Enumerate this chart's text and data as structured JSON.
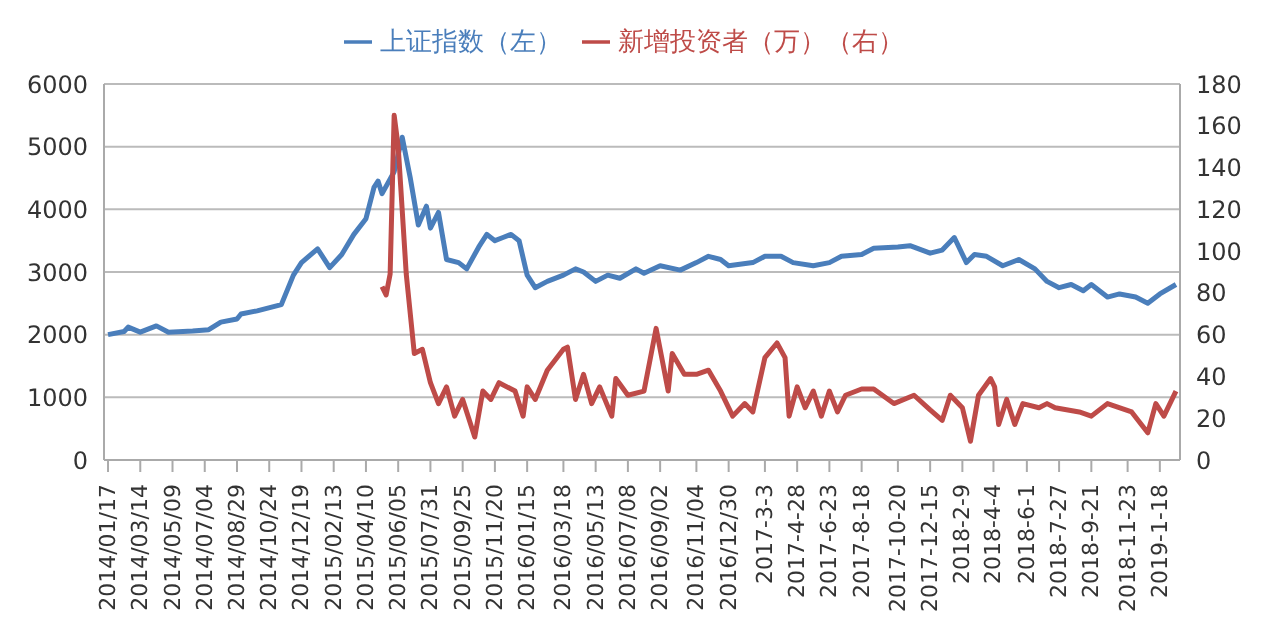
{
  "chart_data": {
    "type": "line",
    "legend": "top",
    "grid": "y",
    "marker": "none",
    "line_style": "solid",
    "xlim": [
      "2014-01-10",
      "2019-02-22"
    ],
    "xticks": [
      {
        "value": "2014-01-17",
        "label": "2014/01/17"
      },
      {
        "value": "2014-03-14",
        "label": "2014/03/14"
      },
      {
        "value": "2014-05-09",
        "label": "2014/05/09"
      },
      {
        "value": "2014-07-04",
        "label": "2014/07/04"
      },
      {
        "value": "2014-08-29",
        "label": "2014/08/29"
      },
      {
        "value": "2014-10-24",
        "label": "2014/10/24"
      },
      {
        "value": "2014-12-19",
        "label": "2014/12/19"
      },
      {
        "value": "2015-02-13",
        "label": "2015/02/13"
      },
      {
        "value": "2015-04-10",
        "label": "2015/04/10"
      },
      {
        "value": "2015-06-05",
        "label": "2015/06/05"
      },
      {
        "value": "2015-07-31",
        "label": "2015/07/31"
      },
      {
        "value": "2015-09-25",
        "label": "2015/09/25"
      },
      {
        "value": "2015-11-20",
        "label": "2015/11/20"
      },
      {
        "value": "2016-01-15",
        "label": "2016/01/15"
      },
      {
        "value": "2016-03-18",
        "label": "2016/03/18"
      },
      {
        "value": "2016-05-13",
        "label": "2016/05/13"
      },
      {
        "value": "2016-07-08",
        "label": "2016/07/08"
      },
      {
        "value": "2016-09-02",
        "label": "2016/09/02"
      },
      {
        "value": "2016-11-04",
        "label": "2016/11/04"
      },
      {
        "value": "2016-12-30",
        "label": "2016/12/30"
      },
      {
        "value": "2017-03-03",
        "label": "2017-3-3"
      },
      {
        "value": "2017-04-28",
        "label": "2017-4-28"
      },
      {
        "value": "2017-06-23",
        "label": "2017-6-23"
      },
      {
        "value": "2017-08-18",
        "label": "2017-8-18"
      },
      {
        "value": "2017-10-20",
        "label": "2017-10-20"
      },
      {
        "value": "2017-12-15",
        "label": "2017-12-15"
      },
      {
        "value": "2018-02-09",
        "label": "2018-2-9"
      },
      {
        "value": "2018-04-04",
        "label": "2018-4-4"
      },
      {
        "value": "2018-06-01",
        "label": "2018-6-1"
      },
      {
        "value": "2018-07-27",
        "label": "2018-7-27"
      },
      {
        "value": "2018-09-21",
        "label": "2018-9-21"
      },
      {
        "value": "2018-11-23",
        "label": "2018-11-23"
      },
      {
        "value": "2019-01-18",
        "label": "2019-1-18"
      }
    ],
    "ylim": [
      0,
      6000
    ],
    "yticks": [
      0,
      1000,
      2000,
      3000,
      4000,
      5000,
      6000
    ],
    "y2lim": [
      0,
      180
    ],
    "y2ticks": [
      0,
      20,
      40,
      60,
      80,
      100,
      120,
      140,
      160,
      180
    ],
    "series": [
      {
        "name": "上证指数（左）",
        "color": "#4a7ebb",
        "x": [
          "2014-01-17",
          "2014-02-14",
          "2014-02-21",
          "2014-03-14",
          "2014-04-11",
          "2014-05-02",
          "2014-06-13",
          "2014-07-11",
          "2014-08-01",
          "2014-08-29",
          "2014-09-05",
          "2014-10-03",
          "2014-11-14",
          "2014-12-05",
          "2014-12-19",
          "2015-01-16",
          "2015-02-06",
          "2015-02-27",
          "2015-03-20",
          "2015-04-10",
          "2015-04-24",
          "2015-05-01",
          "2015-05-08",
          "2015-05-29",
          "2015-06-12",
          "2015-06-26",
          "2015-07-10",
          "2015-07-24",
          "2015-07-31",
          "2015-08-14",
          "2015-08-28",
          "2015-09-18",
          "2015-10-02",
          "2015-10-23",
          "2015-11-06",
          "2015-11-20",
          "2015-12-04",
          "2015-12-18",
          "2016-01-01",
          "2016-01-15",
          "2016-01-29",
          "2016-02-19",
          "2016-03-18",
          "2016-04-08",
          "2016-04-22",
          "2016-05-13",
          "2016-06-03",
          "2016-06-24",
          "2016-07-22",
          "2016-08-05",
          "2016-09-02",
          "2016-10-07",
          "2016-11-04",
          "2016-11-25",
          "2016-12-16",
          "2016-12-30",
          "2017-02-10",
          "2017-03-03",
          "2017-03-31",
          "2017-04-21",
          "2017-05-26",
          "2017-06-23",
          "2017-07-14",
          "2017-08-18",
          "2017-09-08",
          "2017-10-20",
          "2017-11-10",
          "2017-12-15",
          "2018-01-05",
          "2018-01-26",
          "2018-02-16",
          "2018-03-02",
          "2018-03-23",
          "2018-04-20",
          "2018-05-18",
          "2018-06-15",
          "2018-07-06",
          "2018-07-27",
          "2018-08-17",
          "2018-09-07",
          "2018-09-21",
          "2018-10-19",
          "2018-11-09",
          "2018-12-07",
          "2018-12-28",
          "2019-01-18",
          "2019-02-15"
        ],
        "values": [
          2000,
          2050,
          2120,
          2040,
          2140,
          2040,
          2060,
          2080,
          2200,
          2250,
          2330,
          2380,
          2480,
          2950,
          3150,
          3370,
          3070,
          3280,
          3600,
          3850,
          4350,
          4450,
          4250,
          4600,
          5150,
          4500,
          3750,
          4050,
          3700,
          3950,
          3200,
          3150,
          3050,
          3400,
          3600,
          3500,
          3550,
          3600,
          3500,
          2950,
          2750,
          2850,
          2950,
          3050,
          3000,
          2850,
          2950,
          2900,
          3050,
          2980,
          3100,
          3030,
          3150,
          3250,
          3200,
          3100,
          3150,
          3250,
          3250,
          3150,
          3100,
          3150,
          3250,
          3280,
          3380,
          3400,
          3420,
          3300,
          3350,
          3550,
          3150,
          3280,
          3250,
          3100,
          3200,
          3050,
          2850,
          2750,
          2800,
          2700,
          2800,
          2600,
          2650,
          2600,
          2500,
          2650,
          2800
        ]
      },
      {
        "name": "新增投资者（万）（右）",
        "color": "#be4b48",
        "axis": "y2",
        "x": [
          "2015-05-08",
          "2015-05-15",
          "2015-05-22",
          "2015-05-29",
          "2015-06-05",
          "2015-06-19",
          "2015-07-03",
          "2015-07-17",
          "2015-07-31",
          "2015-08-14",
          "2015-08-28",
          "2015-09-11",
          "2015-09-25",
          "2015-10-16",
          "2015-10-30",
          "2015-11-13",
          "2015-11-27",
          "2015-12-25",
          "2016-01-08",
          "2016-01-15",
          "2016-01-29",
          "2016-02-19",
          "2016-03-18",
          "2016-03-25",
          "2016-04-08",
          "2016-04-22",
          "2016-05-06",
          "2016-05-20",
          "2016-06-10",
          "2016-06-17",
          "2016-07-08",
          "2016-08-05",
          "2016-08-26",
          "2016-09-16",
          "2016-09-23",
          "2016-10-14",
          "2016-11-04",
          "2016-11-25",
          "2016-12-16",
          "2017-01-06",
          "2017-01-27",
          "2017-02-10",
          "2017-03-03",
          "2017-03-24",
          "2017-04-07",
          "2017-04-14",
          "2017-04-28",
          "2017-05-12",
          "2017-05-26",
          "2017-06-09",
          "2017-06-23",
          "2017-07-07",
          "2017-07-21",
          "2017-08-18",
          "2017-09-08",
          "2017-10-13",
          "2017-11-17",
          "2017-12-15",
          "2018-01-05",
          "2018-01-19",
          "2018-02-09",
          "2018-02-23",
          "2018-03-09",
          "2018-03-30",
          "2018-04-06",
          "2018-04-13",
          "2018-04-27",
          "2018-05-11",
          "2018-05-25",
          "2018-06-22",
          "2018-07-06",
          "2018-07-20",
          "2018-08-31",
          "2018-09-21",
          "2018-10-19",
          "2018-11-30",
          "2018-12-28",
          "2019-01-11",
          "2019-01-25",
          "2019-02-15"
        ],
        "values": [
          83,
          79,
          89,
          165,
          150,
          89,
          51,
          53,
          37,
          27,
          35,
          21,
          29,
          11,
          33,
          29,
          37,
          33,
          21,
          35,
          29,
          43,
          53,
          54,
          29,
          41,
          27,
          35,
          21,
          39,
          31,
          33,
          63,
          33,
          51,
          41,
          41,
          43,
          33,
          21,
          27,
          23,
          49,
          56,
          49,
          21,
          35,
          25,
          33,
          21,
          33,
          23,
          31,
          34,
          34,
          27,
          31,
          24,
          19,
          31,
          25,
          9,
          31,
          39,
          35,
          17,
          29,
          17,
          27,
          25,
          27,
          25,
          23,
          21,
          27,
          23,
          13,
          27,
          21,
          33
        ]
      }
    ]
  }
}
